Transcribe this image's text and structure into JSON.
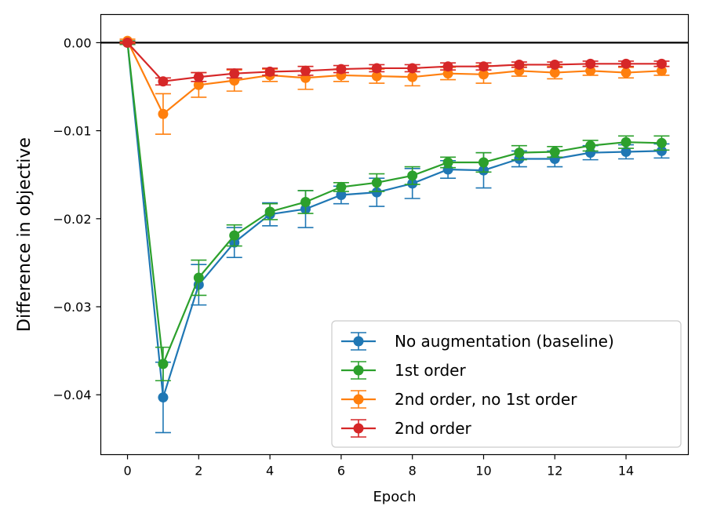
{
  "chart_data": {
    "type": "line",
    "title": "",
    "xlabel": "Epoch",
    "ylabel": "Difference in objective",
    "xlim": [
      -0.75,
      15.75
    ],
    "ylim": [
      -0.0468,
      0.0032
    ],
    "xticks": [
      0,
      2,
      4,
      6,
      8,
      10,
      12,
      14
    ],
    "xtick_labels": [
      "0",
      "2",
      "4",
      "6",
      "8",
      "10",
      "12",
      "14"
    ],
    "yticks": [
      0.0,
      -0.01,
      -0.02,
      -0.03,
      -0.04
    ],
    "ytick_labels": [
      "0.00",
      "−0.01",
      "−0.02",
      "−0.03",
      "−0.04"
    ],
    "reference_line_y": 0.0,
    "grid": false,
    "legend_position": "bottom-right",
    "x": [
      0,
      1,
      2,
      3,
      4,
      5,
      6,
      7,
      8,
      9,
      10,
      11,
      12,
      13,
      14,
      15
    ],
    "series": [
      {
        "name": "No augmentation (baseline)",
        "color": "#1f77b4",
        "values": [
          0.0,
          -0.0403,
          -0.0275,
          -0.0227,
          -0.0195,
          -0.0189,
          -0.0173,
          -0.017,
          -0.016,
          -0.0144,
          -0.0145,
          -0.0132,
          -0.0132,
          -0.0125,
          -0.0124,
          -0.0123
        ],
        "errors": [
          0.0002,
          0.004,
          0.0023,
          0.0017,
          0.0013,
          0.0021,
          0.001,
          0.0016,
          0.0017,
          0.001,
          0.002,
          0.0009,
          0.0009,
          0.0008,
          0.0008,
          0.0008
        ]
      },
      {
        "name": "1st order",
        "color": "#2ca02c",
        "values": [
          0.0,
          -0.0365,
          -0.0267,
          -0.0219,
          -0.0192,
          -0.0181,
          -0.0164,
          -0.0159,
          -0.0151,
          -0.0136,
          -0.0136,
          -0.0125,
          -0.0124,
          -0.0117,
          -0.0113,
          -0.0114
        ],
        "errors": [
          0.0002,
          0.0019,
          0.002,
          0.0012,
          0.0009,
          0.0013,
          0.0005,
          0.001,
          0.001,
          0.0006,
          0.0011,
          0.0008,
          0.0006,
          0.0006,
          0.0007,
          0.0008
        ]
      },
      {
        "name": "2nd order, no 1st order",
        "color": "#ff7f0e",
        "values": [
          0.0002,
          -0.0081,
          -0.0048,
          -0.0043,
          -0.0037,
          -0.004,
          -0.0037,
          -0.0038,
          -0.0039,
          -0.0035,
          -0.0036,
          -0.0032,
          -0.0034,
          -0.0032,
          -0.0034,
          -0.0032
        ],
        "errors": [
          0.0002,
          0.0023,
          0.0014,
          0.0012,
          0.0007,
          0.0013,
          0.0007,
          0.0008,
          0.001,
          0.0007,
          0.001,
          0.0006,
          0.0007,
          0.0005,
          0.0006,
          0.0005
        ]
      },
      {
        "name": "2nd order",
        "color": "#d62728",
        "values": [
          0.0,
          -0.0044,
          -0.0039,
          -0.0035,
          -0.0033,
          -0.0032,
          -0.003,
          -0.0029,
          -0.0029,
          -0.0027,
          -0.0027,
          -0.0025,
          -0.0025,
          -0.0024,
          -0.0024,
          -0.0024
        ],
        "errors": [
          0.0001,
          0.0004,
          0.0005,
          0.0005,
          0.0004,
          0.0005,
          0.0004,
          0.0004,
          0.0004,
          0.0004,
          0.0004,
          0.0003,
          0.0003,
          0.0003,
          0.0003,
          0.0003
        ]
      }
    ]
  }
}
